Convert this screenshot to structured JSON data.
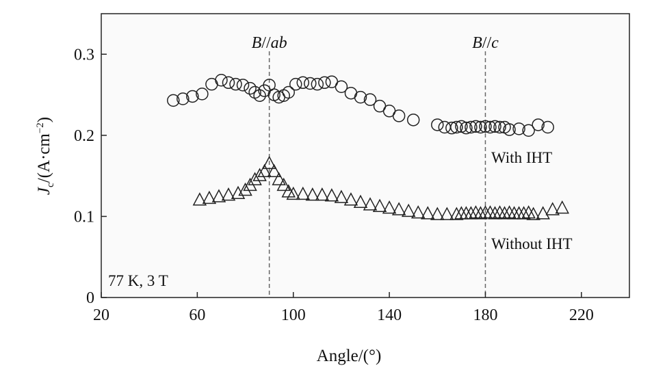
{
  "chart_data": {
    "type": "scatter",
    "title": "",
    "xlabel": "Angle/(°)",
    "ylabel_main": "J",
    "ylabel_sub": "c",
    "ylabel_rest": "/(A·cm",
    "ylabel_sup": "−2",
    "ylabel_end": ")",
    "xlim": [
      20,
      240
    ],
    "ylim": [
      0,
      0.35
    ],
    "xticks": [
      20,
      60,
      100,
      140,
      180,
      220
    ],
    "xtick_labels": [
      "20",
      "60",
      "100",
      "140",
      "180",
      "220"
    ],
    "yticks": [
      0,
      0.1,
      0.2,
      0.3
    ],
    "ytick_labels": [
      "0",
      "0.1",
      "0.2",
      "0.3"
    ],
    "grid": false,
    "condition_label": "77 K, 3 T",
    "reference_lines": [
      {
        "x": 90,
        "label_main": "B",
        "label_rest": "//",
        "label_ital": "ab"
      },
      {
        "x": 180,
        "label_main": "B",
        "label_rest": "//",
        "label_ital": "c"
      }
    ],
    "series": [
      {
        "name": "With IHT",
        "marker": "circle",
        "x": [
          50,
          54,
          58,
          62,
          66,
          70,
          73,
          76,
          79,
          82,
          84,
          86,
          88,
          90,
          92,
          94,
          96,
          98,
          101,
          104,
          107,
          110,
          113,
          116,
          120,
          124,
          128,
          132,
          136,
          140,
          144,
          150,
          160,
          163,
          166,
          168,
          170,
          172,
          174,
          176,
          178,
          180,
          182,
          184,
          186,
          188,
          190,
          194,
          198,
          202,
          206
        ],
        "y": [
          0.243,
          0.245,
          0.248,
          0.251,
          0.263,
          0.268,
          0.265,
          0.263,
          0.262,
          0.258,
          0.253,
          0.249,
          0.255,
          0.262,
          0.25,
          0.247,
          0.249,
          0.253,
          0.263,
          0.265,
          0.264,
          0.263,
          0.265,
          0.266,
          0.26,
          0.252,
          0.247,
          0.244,
          0.236,
          0.23,
          0.224,
          0.219,
          0.213,
          0.21,
          0.209,
          0.21,
          0.211,
          0.209,
          0.21,
          0.211,
          0.21,
          0.211,
          0.21,
          0.211,
          0.21,
          0.21,
          0.207,
          0.208,
          0.206,
          0.213,
          0.21
        ]
      },
      {
        "name": "Without IHT",
        "marker": "triangle",
        "x": [
          61,
          65,
          69,
          73,
          77,
          80,
          82,
          84,
          86,
          88,
          90,
          92,
          94,
          96,
          98,
          100,
          104,
          108,
          112,
          116,
          120,
          124,
          128,
          132,
          136,
          140,
          144,
          148,
          152,
          156,
          160,
          164,
          168,
          170,
          172,
          174,
          176,
          178,
          180,
          182,
          184,
          186,
          188,
          190,
          192,
          194,
          196,
          198,
          200,
          204,
          208,
          212
        ],
        "y": [
          0.12,
          0.122,
          0.124,
          0.126,
          0.128,
          0.132,
          0.138,
          0.145,
          0.15,
          0.155,
          0.165,
          0.155,
          0.145,
          0.138,
          0.13,
          0.127,
          0.127,
          0.126,
          0.126,
          0.125,
          0.123,
          0.12,
          0.117,
          0.114,
          0.112,
          0.11,
          0.108,
          0.106,
          0.104,
          0.103,
          0.102,
          0.102,
          0.102,
          0.103,
          0.103,
          0.103,
          0.104,
          0.103,
          0.104,
          0.104,
          0.103,
          0.104,
          0.103,
          0.104,
          0.103,
          0.103,
          0.103,
          0.104,
          0.102,
          0.103,
          0.108,
          0.11
        ]
      }
    ]
  }
}
